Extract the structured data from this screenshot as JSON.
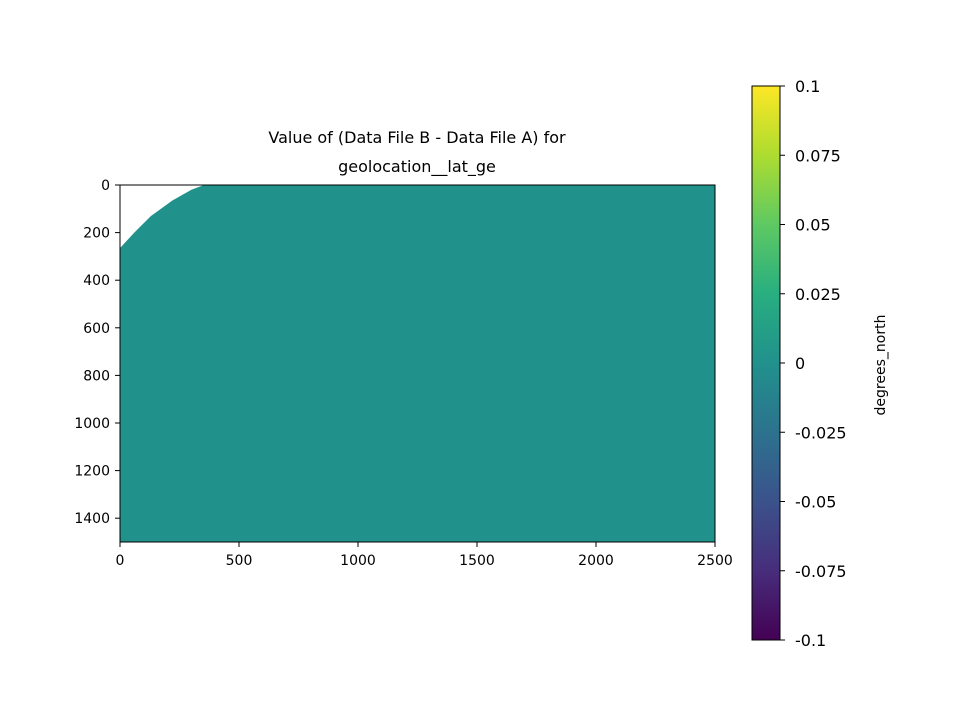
{
  "chart_data": {
    "type": "heatmap",
    "title_lines": [
      "Value of (Data File B - Data File A) for",
      "geolocation__lat_ge"
    ],
    "xlim": [
      0,
      2500
    ],
    "ylim": [
      1500,
      0
    ],
    "x_ticks": [
      0,
      500,
      1000,
      1500,
      2000,
      2500
    ],
    "y_ticks": [
      0,
      200,
      400,
      600,
      800,
      1000,
      1200,
      1400
    ],
    "fill_value": 0,
    "fill_color": "#21918c",
    "missing_region_boundary": [
      [
        0,
        265
      ],
      [
        60,
        200
      ],
      [
        130,
        130
      ],
      [
        220,
        65
      ],
      [
        300,
        20
      ],
      [
        353,
        0
      ]
    ],
    "colorbar": {
      "label": "degrees_north",
      "range": [
        -0.1,
        0.1
      ],
      "colormap": "viridis",
      "ticks": [
        "0.1",
        "0.075",
        "0.05",
        "0.025",
        "0",
        "-0.025",
        "-0.05",
        "-0.075",
        "-0.1"
      ],
      "tick_values": [
        0.1,
        0.075,
        0.05,
        0.025,
        0,
        -0.025,
        -0.05,
        -0.075,
        -0.1
      ]
    }
  }
}
